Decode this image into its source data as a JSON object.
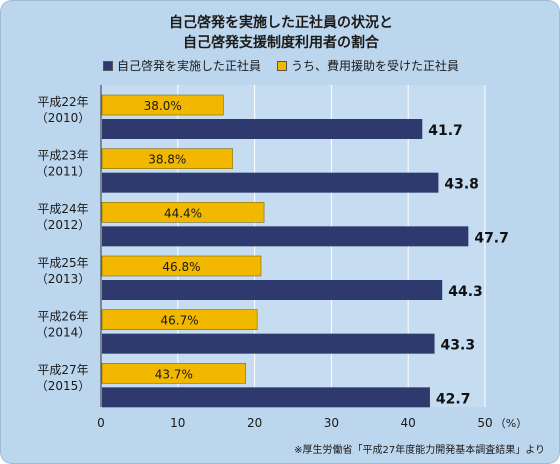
{
  "chart_data": {
    "type": "bar",
    "orientation": "horizontal",
    "title": [
      "自己啓発を実施した正社員の状況と",
      "自己啓発支援制度利用者の割合"
    ],
    "categories": [
      {
        "year": "平成22年",
        "western": "（2010）"
      },
      {
        "year": "平成23年",
        "western": "（2011）"
      },
      {
        "year": "平成24年",
        "western": "（2012）"
      },
      {
        "year": "平成25年",
        "western": "（2013）"
      },
      {
        "year": "平成26年",
        "western": "（2014）"
      },
      {
        "year": "平成27年",
        "western": "（2015）"
      }
    ],
    "series": [
      {
        "name": "自己啓発を実施した正社員",
        "color": "#2e3a6e",
        "values": [
          41.7,
          43.8,
          47.7,
          44.3,
          43.3,
          42.7
        ],
        "labels": [
          "41.7",
          "43.8",
          "47.7",
          "44.3",
          "43.3",
          "42.7"
        ]
      },
      {
        "name": "うち、費用援助を受けた正社員",
        "color": "#f2b800",
        "values": [
          15.8,
          17.0,
          21.1,
          20.7,
          20.2,
          18.7
        ],
        "labels": [
          "38.0%",
          "38.8%",
          "44.4%",
          "46.8%",
          "46.7%",
          "43.7%"
        ]
      }
    ],
    "xlim": [
      0,
      50
    ],
    "xticks": [
      "0",
      "10",
      "20",
      "30",
      "40",
      "50"
    ],
    "xunit": "（%）",
    "grid": true,
    "legend_position": "top"
  },
  "source": "※厚生労働省「平成27年度能力開発基本調査結果」より"
}
